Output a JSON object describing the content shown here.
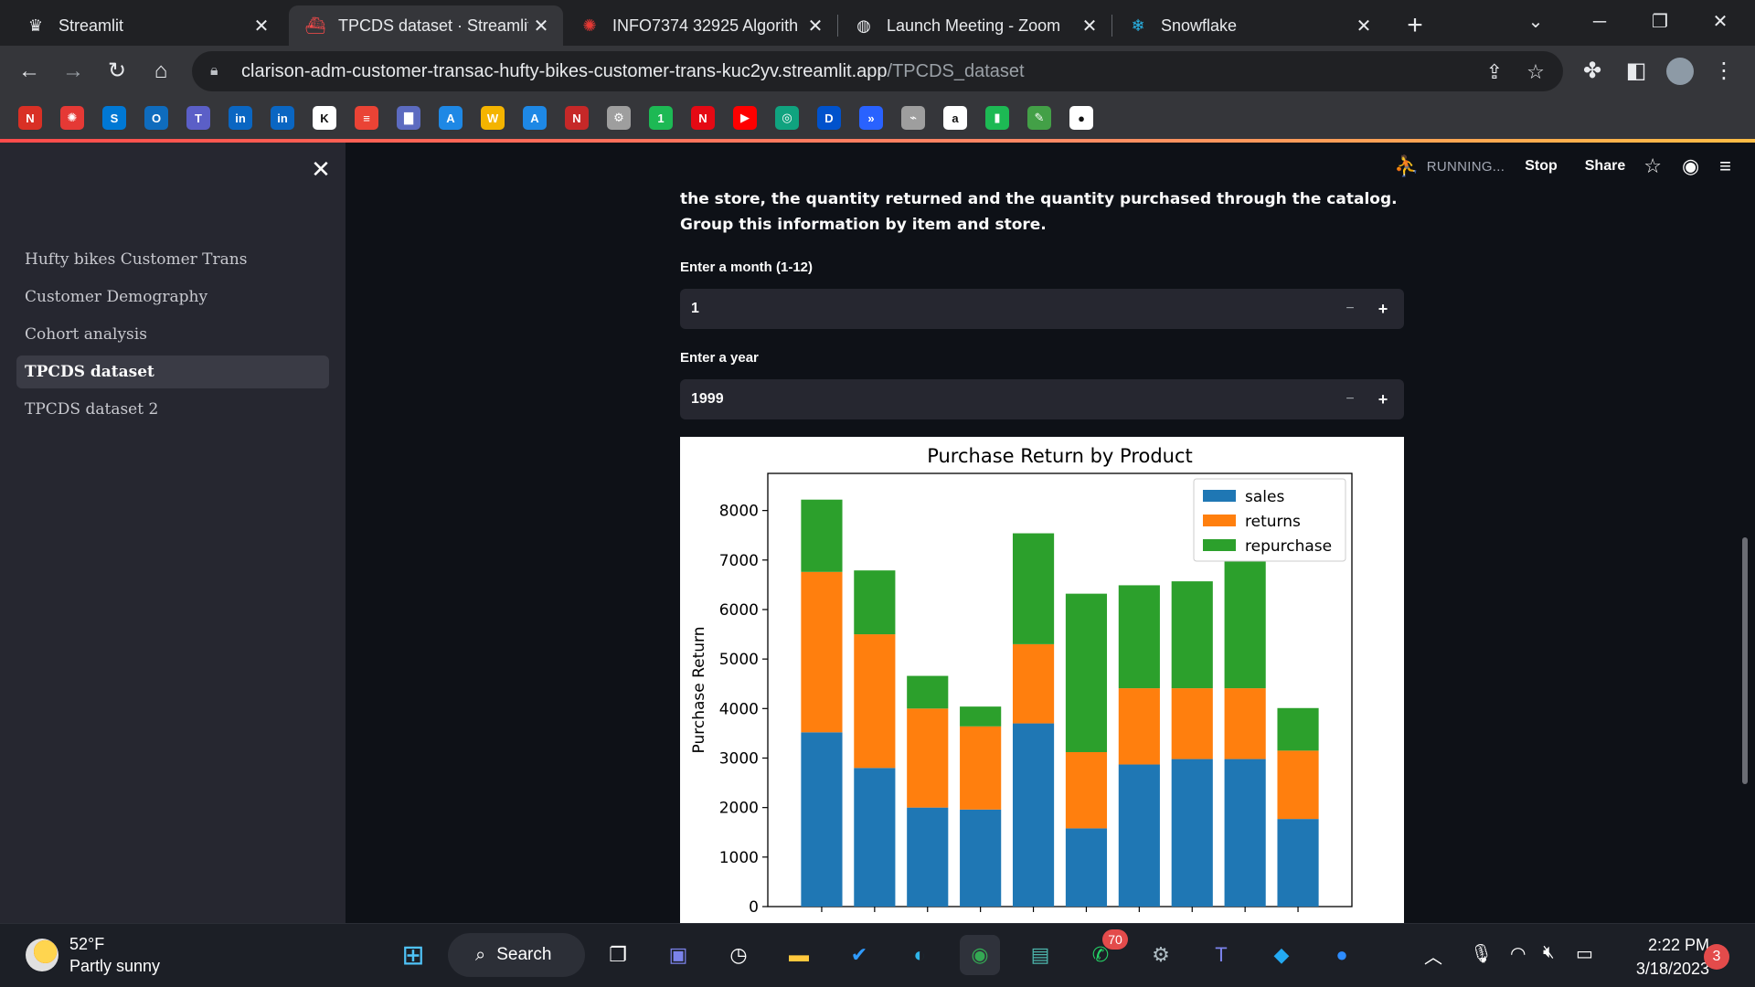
{
  "browser": {
    "tabs": [
      {
        "title": "Streamlit",
        "icon": "streamlit-crown-icon",
        "active": false
      },
      {
        "title": "TPCDS dataset · Streamlit",
        "icon": "streamlit-red-icon",
        "active": true
      },
      {
        "title": "INFO7374 32925 Algorith",
        "icon": "canvas-icon",
        "active": false
      },
      {
        "title": "Launch Meeting - Zoom",
        "icon": "globe-icon",
        "active": false
      },
      {
        "title": "Snowflake",
        "icon": "snowflake-icon",
        "active": false
      }
    ],
    "url_host": "clarison-adm-customer-transac-hufty-bikes-customer-trans-kuc2yv.streamlit.app",
    "url_path": "/TPCDS_dataset",
    "bookmarks": [
      {
        "label": "N",
        "color": "#d93025"
      },
      {
        "label": "✺",
        "color": "#e53935"
      },
      {
        "label": "S",
        "color": "#0078d4"
      },
      {
        "label": "O",
        "color": "#0f6cbd"
      },
      {
        "label": "T",
        "color": "#5b5fc7"
      },
      {
        "label": "in",
        "color": "#0a66c2"
      },
      {
        "label": "in",
        "color": "#0a66c2"
      },
      {
        "label": "K",
        "color": "#ffffff"
      },
      {
        "label": "≡",
        "color": "#ea4335"
      },
      {
        "label": "▇",
        "color": "#5c6bc0"
      },
      {
        "label": "A",
        "color": "#1e88e5"
      },
      {
        "label": "W",
        "color": "#f4b400"
      },
      {
        "label": "A",
        "color": "#1e88e5"
      },
      {
        "label": "N",
        "color": "#c62828"
      },
      {
        "label": "⚙",
        "color": "#9e9e9e"
      },
      {
        "label": "1",
        "color": "#1db954"
      },
      {
        "label": "N",
        "color": "#e50914"
      },
      {
        "label": "▶",
        "color": "#ff0000"
      },
      {
        "label": "◎",
        "color": "#10a37f"
      },
      {
        "label": "D",
        "color": "#0052cc"
      },
      {
        "label": "»",
        "color": "#2962ff"
      },
      {
        "label": "⌁",
        "color": "#9e9e9e"
      },
      {
        "label": "a",
        "color": "#ffffff"
      },
      {
        "label": "▮",
        "color": "#1db954"
      },
      {
        "label": "✎",
        "color": "#43a047"
      },
      {
        "label": "●",
        "color": "#ffffff"
      }
    ]
  },
  "sidebar": {
    "items": [
      {
        "label": "Hufty bikes Customer Trans",
        "active": false
      },
      {
        "label": "Customer Demography",
        "active": false
      },
      {
        "label": "Cohort analysis",
        "active": false
      },
      {
        "label": "TPCDS dataset",
        "active": true
      },
      {
        "label": "TPCDS dataset 2",
        "active": false
      }
    ]
  },
  "header": {
    "status": "RUNNING...",
    "stop_label": "Stop",
    "share_label": "Share"
  },
  "main": {
    "description": "the store, the quantity returned and the quantity purchased through the catalog. Group this information by item and store.",
    "month_label": "Enter a month (1-12)",
    "month_value": "1",
    "year_label": "Enter a year",
    "year_value": "1999"
  },
  "chart_data": {
    "type": "bar",
    "stacked": true,
    "title": "Purchase Return by Product",
    "ylabel": "Purchase Return",
    "ylim": [
      0,
      8750
    ],
    "yticks": [
      0,
      1000,
      2000,
      3000,
      4000,
      5000,
      6000,
      7000,
      8000
    ],
    "legend_position": "top-right",
    "series": [
      {
        "name": "sales",
        "color": "#1f77b4",
        "values": [
          3520,
          2800,
          2000,
          1960,
          3700,
          1580,
          2870,
          2980,
          2980,
          1770
        ]
      },
      {
        "name": "returns",
        "color": "#ff7f0e",
        "values": [
          3240,
          2700,
          2000,
          1680,
          1600,
          1540,
          1540,
          1430,
          1430,
          1380
        ]
      },
      {
        "name": "repurchase",
        "color": "#2ca02c",
        "values": [
          1460,
          1290,
          660,
          400,
          2240,
          3200,
          2080,
          2160,
          2730,
          860
        ]
      }
    ]
  },
  "taskbar": {
    "temperature": "52°F",
    "weather": "Partly sunny",
    "search_label": "Search",
    "whatsapp_badge": "70",
    "time": "2:22 PM",
    "date": "3/18/2023",
    "notification_count": "3"
  }
}
